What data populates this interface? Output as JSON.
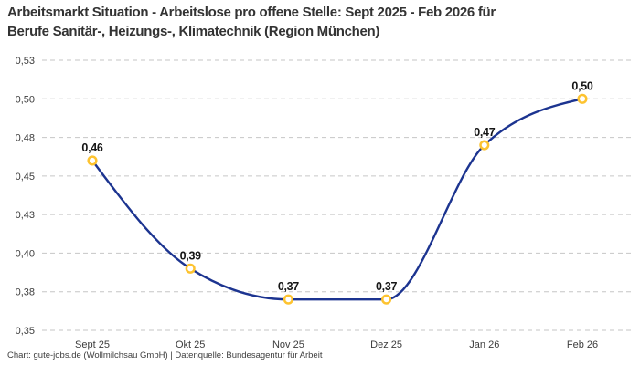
{
  "title": {
    "line1": "Arbeitsmarkt Situation - Arbeitslose pro offene Stelle: Sept 2025 - Feb 2026 für",
    "line2": "Berufe Sanitär-, Heizungs-, Klimatechnik (Region München)"
  },
  "footer": {
    "credit": "Chart: gute-jobs.de (Wollmilchsau GmbH) | Datenquelle: Bundesagentur für Arbeit"
  },
  "colors": {
    "line": "#1c3490",
    "marker_stroke": "#fdc330",
    "marker_fill": "#ffffff",
    "grid": "#c6c6c6",
    "title_text": "#333333",
    "tick_text": "#3c3c3c",
    "label_text": "#161616"
  },
  "chart_data": {
    "type": "line",
    "title": "Arbeitsmarkt Situation - Arbeitslose pro offene Stelle: Sept 2025 - Feb 2026 für Berufe Sanitär-, Heizungs-, Klimatechnik (Region München)",
    "categories": [
      "Sept 25",
      "Okt 25",
      "Nov 25",
      "Dez 25",
      "Jan 26",
      "Feb 26"
    ],
    "values": [
      0.46,
      0.39,
      0.37,
      0.37,
      0.47,
      0.5
    ],
    "point_labels": [
      "0,46",
      "0,39",
      "0,37",
      "0,37",
      "0,47",
      "0,50"
    ],
    "xlabel": "",
    "ylabel": "",
    "ylim": [
      0.35,
      0.525
    ],
    "y_ticks": [
      {
        "value": 0.525,
        "label": "0,53"
      },
      {
        "value": 0.5,
        "label": "0,50"
      },
      {
        "value": 0.475,
        "label": "0,48"
      },
      {
        "value": 0.45,
        "label": "0,45"
      },
      {
        "value": 0.425,
        "label": "0,43"
      },
      {
        "value": 0.4,
        "label": "0,40"
      },
      {
        "value": 0.375,
        "label": "0,38"
      },
      {
        "value": 0.35,
        "label": "0,35"
      }
    ],
    "grid": "dashed-horizontal",
    "legend": "none",
    "curve": "smooth-monotone"
  }
}
